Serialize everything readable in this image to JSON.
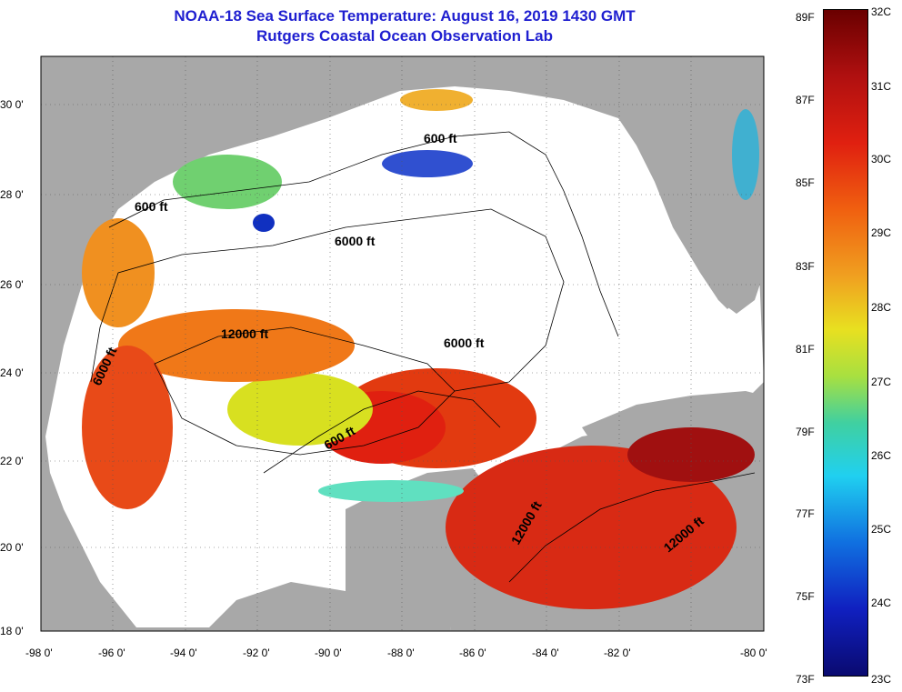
{
  "title": "NOAA-18 Sea Surface Temperature:  August 16, 2019 1430 GMT",
  "subtitle": "Rutgers Coastal Ocean Observation Lab",
  "map": {
    "lat_ticks": [
      "30 0'",
      "28 0'",
      "26 0'",
      "24 0'",
      "22 0'",
      "20 0'",
      "18 0'"
    ],
    "lon_ticks": [
      "-98 0'",
      "-96 0'",
      "-94 0'",
      "-92 0'",
      "-90 0'",
      "-88 0'",
      "-86 0'",
      "-84 0'",
      "-82 0'",
      "-80 0'"
    ],
    "contour_labels": [
      "600 ft",
      "600 ft",
      "6000 ft",
      "12000 ft",
      "6000 ft",
      "6000 ft",
      "600 ft",
      "12000 ft",
      "12000 ft"
    ]
  },
  "colorbar": {
    "fahrenheit": [
      "89F",
      "87F",
      "85F",
      "83F",
      "81F",
      "79F",
      "77F",
      "75F",
      "73F"
    ],
    "celsius": [
      "32C",
      "31C",
      "30C",
      "29C",
      "28C",
      "27C",
      "26C",
      "25C",
      "24C",
      "23C"
    ]
  },
  "colors": {
    "land": "#a8a8a8",
    "cloud": "#ffffff",
    "title": "#1f1fd0"
  }
}
